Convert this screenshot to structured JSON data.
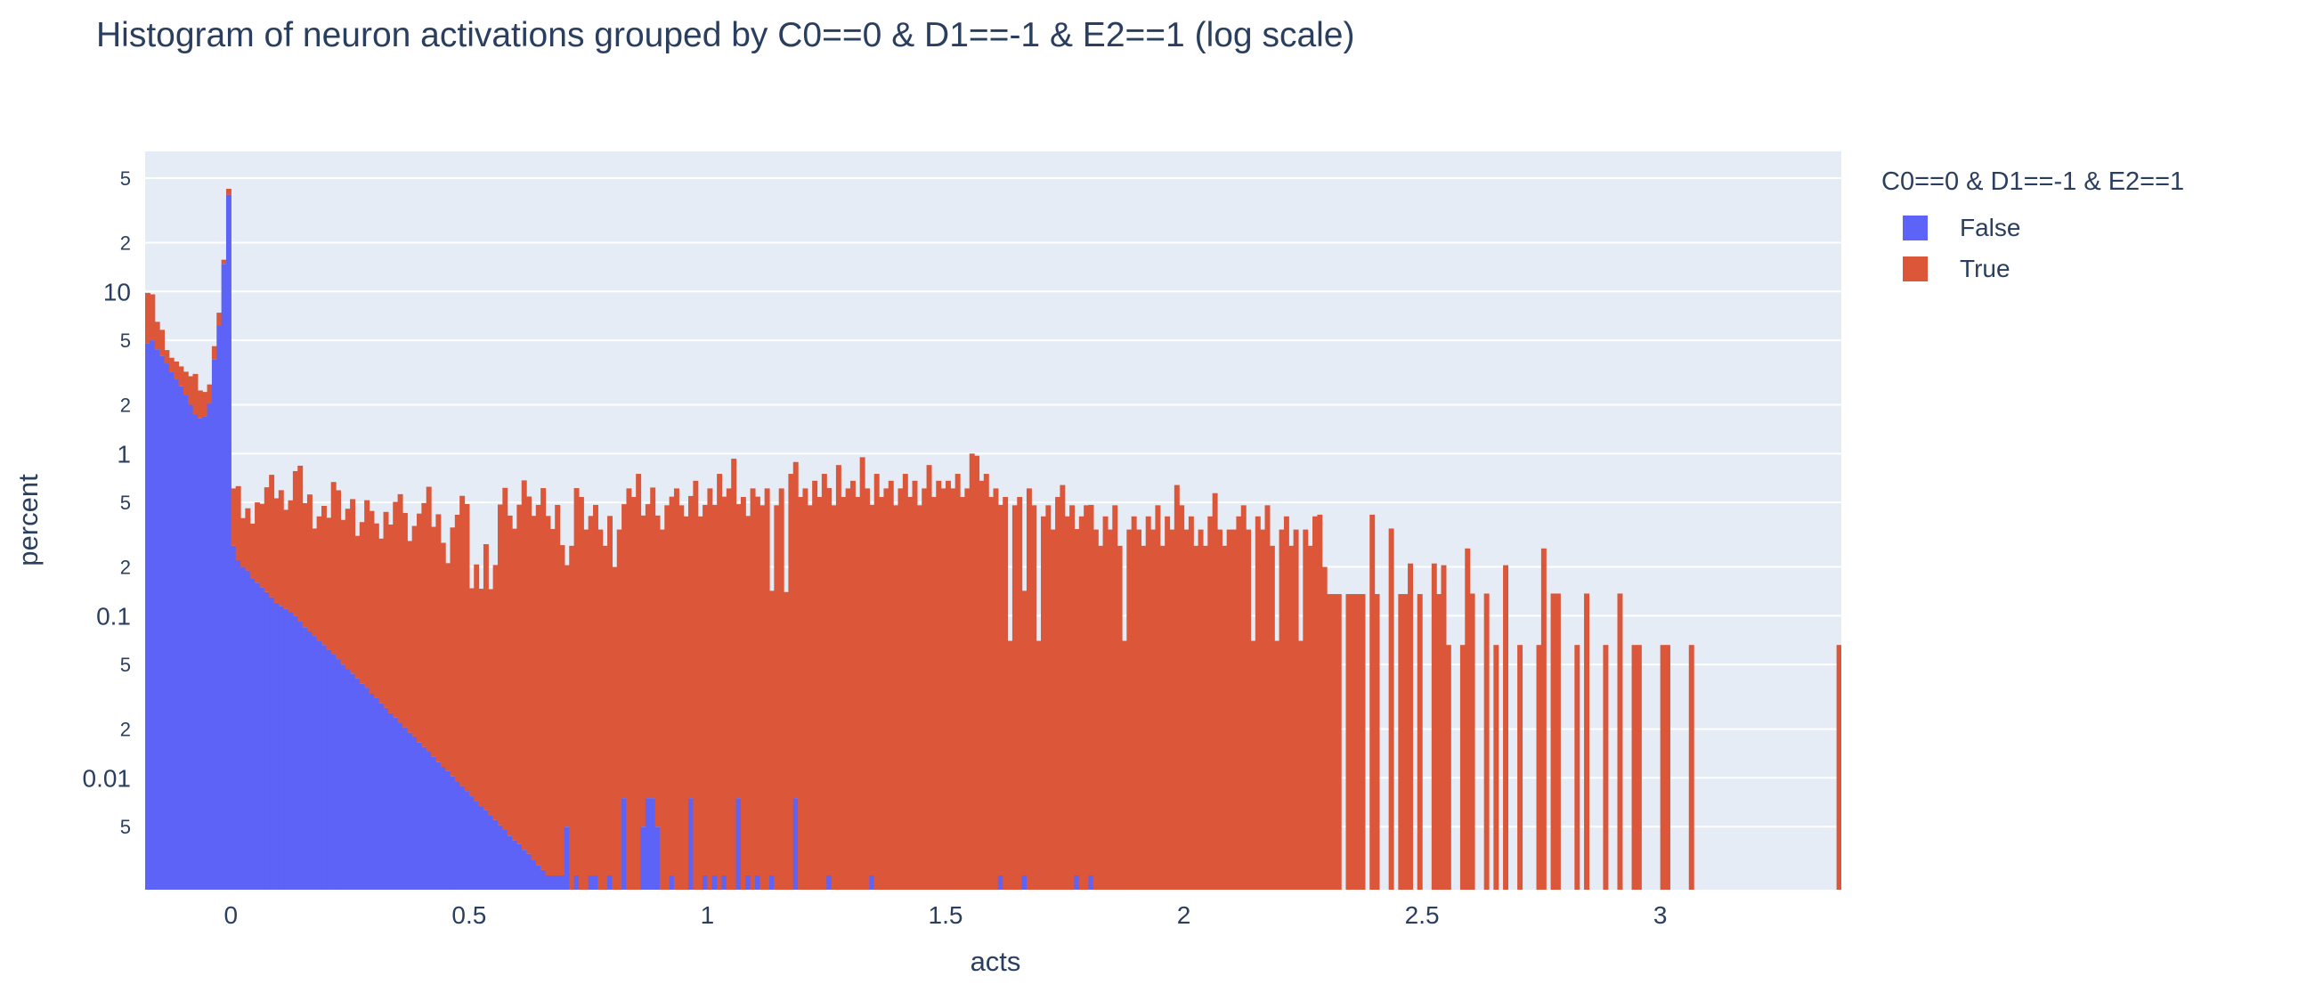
{
  "title": "Histogram of neuron activations grouped by C0==0 & D1==-1 & E2==1 (log scale)",
  "axes": {
    "x_title": "acts",
    "y_title": "percent"
  },
  "legend": {
    "title": "C0==0 & D1==-1 & E2==1",
    "items": [
      {
        "label": "False",
        "color": "#5c63f6"
      },
      {
        "label": "True",
        "color": "#dc5639"
      }
    ]
  },
  "colors": {
    "text": "#2a3f5f",
    "page_bg": "#ffffff",
    "plot_bg": "#e5ecf6",
    "grid": "#ffffff",
    "false_series": "#5c63f6",
    "true_series": "#dc5639"
  },
  "chart_data": {
    "type": "bar",
    "subtype": "stacked-histogram",
    "title": "Histogram of neuron activations grouped by C0==0 & D1==-1 & E2==1 (log scale)",
    "xlabel": "acts",
    "ylabel": "percent",
    "y_scale": "log",
    "grid": true,
    "legend_position": "right",
    "bin_start": -0.18,
    "bin_width": 0.01,
    "x_range": [
      -0.18,
      3.38
    ],
    "y_log_range": [
      -2.69,
      1.864
    ],
    "x_ticks": [
      {
        "v": 0,
        "label": "0"
      },
      {
        "v": 0.5,
        "label": "0.5"
      },
      {
        "v": 1,
        "label": "1"
      },
      {
        "v": 1.5,
        "label": "1.5"
      },
      {
        "v": 2,
        "label": "2"
      },
      {
        "v": 2.5,
        "label": "2.5"
      },
      {
        "v": 3,
        "label": "3"
      }
    ],
    "y_ticks": [
      {
        "v": 50,
        "label": "5",
        "minor": true
      },
      {
        "v": 20,
        "label": "2",
        "minor": true
      },
      {
        "v": 10,
        "label": "10",
        "minor": false
      },
      {
        "v": 5,
        "label": "5",
        "minor": true
      },
      {
        "v": 2,
        "label": "2",
        "minor": true
      },
      {
        "v": 1,
        "label": "1",
        "minor": false
      },
      {
        "v": 0.5,
        "label": "5",
        "minor": true
      },
      {
        "v": 0.2,
        "label": "2",
        "minor": true
      },
      {
        "v": 0.1,
        "label": "0.1",
        "minor": false
      },
      {
        "v": 0.05,
        "label": "5",
        "minor": true
      },
      {
        "v": 0.02,
        "label": "2",
        "minor": true
      },
      {
        "v": 0.01,
        "label": "0.01",
        "minor": false
      },
      {
        "v": 0.005,
        "label": "5",
        "minor": true
      }
    ],
    "series": [
      {
        "name": "False",
        "color": "#5c63f6",
        "values": [
          4.8,
          5,
          4.4,
          4,
          3.6,
          3.2,
          2.9,
          2.6,
          2.3,
          2,
          1.75,
          1.65,
          1.7,
          2.05,
          3.8,
          6.2,
          14.8,
          39.5,
          0.27,
          0.22,
          0.2,
          0.19,
          0.17,
          0.16,
          0.15,
          0.14,
          0.13,
          0.12,
          0.115,
          0.11,
          0.105,
          0.1,
          0.092,
          0.085,
          0.08,
          0.075,
          0.07,
          0.066,
          0.062,
          0.058,
          0.054,
          0.05,
          0.047,
          0.044,
          0.041,
          0.038,
          0.036,
          0.033,
          0.031,
          0.029,
          0.027,
          0.025,
          0.0235,
          0.022,
          0.0205,
          0.019,
          0.018,
          0.0165,
          0.0155,
          0.0145,
          0.0135,
          0.0125,
          0.0117,
          0.011,
          0.0102,
          0.0095,
          0.0089,
          0.0083,
          0.0077,
          0.0072,
          0.0067,
          0.0063,
          0.0059,
          0.0055,
          0.0051,
          0.0048,
          0.0044,
          0.0041,
          0.0039,
          0.0036,
          0.0034,
          0.0031,
          0.0029,
          0.0027,
          0.0025,
          0.0025,
          0.0025,
          0.0025,
          0.005,
          0,
          0.0025,
          0,
          0,
          0.0025,
          0.0025,
          0,
          0,
          0.0025,
          0,
          0,
          0.0075,
          0,
          0,
          0,
          0.005,
          0.0075,
          0.0075,
          0.005,
          0,
          0,
          0.0025,
          0,
          0,
          0,
          0.0075,
          0,
          0,
          0.0025,
          0,
          0.0025,
          0,
          0.0025,
          0,
          0,
          0.0075,
          0,
          0.0025,
          0,
          0.0025,
          0,
          0,
          0.0025,
          0,
          0,
          0,
          0,
          0.0075,
          0,
          0,
          0,
          0,
          0,
          0,
          0.0025,
          0,
          0,
          0,
          0,
          0,
          0,
          0,
          0,
          0.0025,
          0,
          0,
          0,
          0,
          0,
          0,
          0,
          0,
          0,
          0,
          0,
          0,
          0,
          0,
          0,
          0,
          0,
          0,
          0,
          0,
          0,
          0,
          0,
          0,
          0,
          0,
          0.0025,
          0,
          0,
          0,
          0,
          0.0025,
          0,
          0,
          0,
          0,
          0,
          0,
          0,
          0,
          0,
          0,
          0.0025,
          0,
          0,
          0.0025,
          0,
          0,
          0,
          0,
          0,
          0,
          0,
          0,
          0,
          0,
          0,
          0,
          0,
          0,
          0,
          0,
          0,
          0,
          0,
          0,
          0,
          0,
          0,
          0,
          0,
          0,
          0,
          0,
          0,
          0,
          0,
          0,
          0,
          0,
          0,
          0,
          0,
          0,
          0,
          0,
          0,
          0,
          0,
          0,
          0,
          0,
          0,
          0,
          0,
          0,
          0,
          0,
          0,
          0,
          0,
          0,
          0,
          0,
          0,
          0,
          0,
          0,
          0,
          0,
          0,
          0,
          0,
          0,
          0,
          0,
          0,
          0,
          0,
          0,
          0,
          0,
          0,
          0,
          0,
          0,
          0,
          0,
          0,
          0,
          0,
          0,
          0,
          0,
          0,
          0,
          0,
          0,
          0,
          0,
          0,
          0,
          0,
          0,
          0,
          0,
          0,
          0,
          0,
          0,
          0,
          0,
          0,
          0,
          0,
          0,
          0,
          0,
          0,
          0,
          0,
          0,
          0,
          0,
          0,
          0,
          0,
          0,
          0,
          0,
          0,
          0,
          0,
          0,
          0,
          0,
          0,
          0,
          0,
          0,
          0,
          0,
          0,
          0,
          0,
          0,
          0,
          0,
          0,
          0,
          0,
          0,
          0,
          0,
          0,
          0,
          0,
          0,
          0,
          0,
          0,
          0,
          0,
          0,
          0,
          0,
          0,
          0,
          0
        ]
      },
      {
        "name": "True",
        "color": "#dc5639",
        "values": [
          5,
          4.6,
          2.1,
          1.8,
          0.75,
          0.7,
          0.8,
          0.85,
          0.9,
          1,
          1.35,
          0.8,
          0.7,
          0.62,
          0.8,
          1.2,
          0.9,
          3.5,
          0.34,
          0.41,
          0.2,
          0.27,
          0.2,
          0.34,
          0.34,
          0.48,
          0.61,
          0.41,
          0.48,
          0.34,
          0.41,
          0.68,
          0.75,
          0.41,
          0.48,
          0.27,
          0.34,
          0.41,
          0.34,
          0.61,
          0.54,
          0.34,
          0.41,
          0.48,
          0.27,
          0.34,
          0.48,
          0.41,
          0.34,
          0.27,
          0.41,
          0.34,
          0.48,
          0.54,
          0.41,
          0.27,
          0.34,
          0.41,
          0.48,
          0.61,
          0.34,
          0.41,
          0.27,
          0.2,
          0.34,
          0.41,
          0.54,
          0.48,
          0.14,
          0.2,
          0.14,
          0.27,
          0.14,
          0.2,
          0.48,
          0.61,
          0.41,
          0.34,
          0.48,
          0.68,
          0.54,
          0.41,
          0.48,
          0.61,
          0.41,
          0.34,
          0.48,
          0.27,
          0.2,
          0.27,
          0.61,
          0.54,
          0.34,
          0.41,
          0.48,
          0.34,
          0.27,
          0.41,
          0.2,
          0.34,
          0.48,
          0.61,
          0.54,
          0.75,
          0.41,
          0.48,
          0.61,
          0.41,
          0.34,
          0.48,
          0.54,
          0.61,
          0.48,
          0.41,
          0.54,
          0.68,
          0.41,
          0.48,
          0.61,
          0.48,
          0.75,
          0.54,
          0.61,
          0.93,
          0.48,
          0.54,
          0.41,
          0.61,
          0.54,
          0.48,
          0.61,
          0.14,
          0.48,
          0.61,
          0.14,
          0.75,
          0.88,
          0.54,
          0.61,
          0.48,
          0.68,
          0.54,
          0.75,
          0.61,
          0.48,
          0.85,
          0.54,
          0.61,
          0.68,
          0.54,
          0.95,
          0.61,
          0.48,
          0.75,
          0.54,
          0.61,
          0.68,
          0.48,
          0.61,
          0.75,
          0.54,
          0.68,
          0.48,
          0.61,
          0.85,
          0.54,
          0.68,
          0.61,
          0.68,
          0.61,
          0.75,
          0.54,
          0.61,
          1,
          0.97,
          0.68,
          0.75,
          0.54,
          0.61,
          0.48,
          0.54,
          0.07,
          0.48,
          0.54,
          0.14,
          0.61,
          0.48,
          0.07,
          0.41,
          0.48,
          0.34,
          0.54,
          0.64,
          0.41,
          0.48,
          0.34,
          0.41,
          0.48,
          0.48,
          0.34,
          0.27,
          0.41,
          0.34,
          0.48,
          0.27,
          0.07,
          0.34,
          0.41,
          0.34,
          0.27,
          0.41,
          0.34,
          0.48,
          0.27,
          0.41,
          0.34,
          0.64,
          0.48,
          0.34,
          0.41,
          0.27,
          0.34,
          0.27,
          0.41,
          0.57,
          0.34,
          0.27,
          0.34,
          0.34,
          0.41,
          0.48,
          0.34,
          0.07,
          0.41,
          0.34,
          0.48,
          0.27,
          0.07,
          0.34,
          0.41,
          0.27,
          0.34,
          0.07,
          0.34,
          0.27,
          0.41,
          0.42,
          0.2,
          0.136,
          0.136,
          0.136,
          0,
          0.136,
          0.136,
          0.136,
          0.136,
          0,
          0.42,
          0.136,
          0,
          0,
          0.345,
          0,
          0.136,
          0.136,
          0.21,
          0,
          0.136,
          0,
          0,
          0.21,
          0.136,
          0.205,
          0.066,
          0,
          0,
          0.066,
          0.26,
          0.137,
          0,
          0,
          0.137,
          0,
          0.066,
          0,
          0.205,
          0,
          0,
          0.066,
          0,
          0,
          0,
          0.066,
          0.26,
          0,
          0.137,
          0.137,
          0,
          0,
          0,
          0.066,
          0,
          0.137,
          0,
          0,
          0,
          0.066,
          0,
          0,
          0.137,
          0,
          0,
          0.066,
          0.066,
          0,
          0,
          0,
          0,
          0.066,
          0.066,
          0,
          0,
          0,
          0,
          0.066,
          0,
          0,
          0,
          0,
          0,
          0,
          0,
          0,
          0,
          0,
          0,
          0,
          0,
          0,
          0,
          0,
          0,
          0,
          0,
          0,
          0,
          0,
          0,
          0,
          0,
          0,
          0,
          0,
          0,
          0,
          0.066
        ]
      }
    ]
  }
}
